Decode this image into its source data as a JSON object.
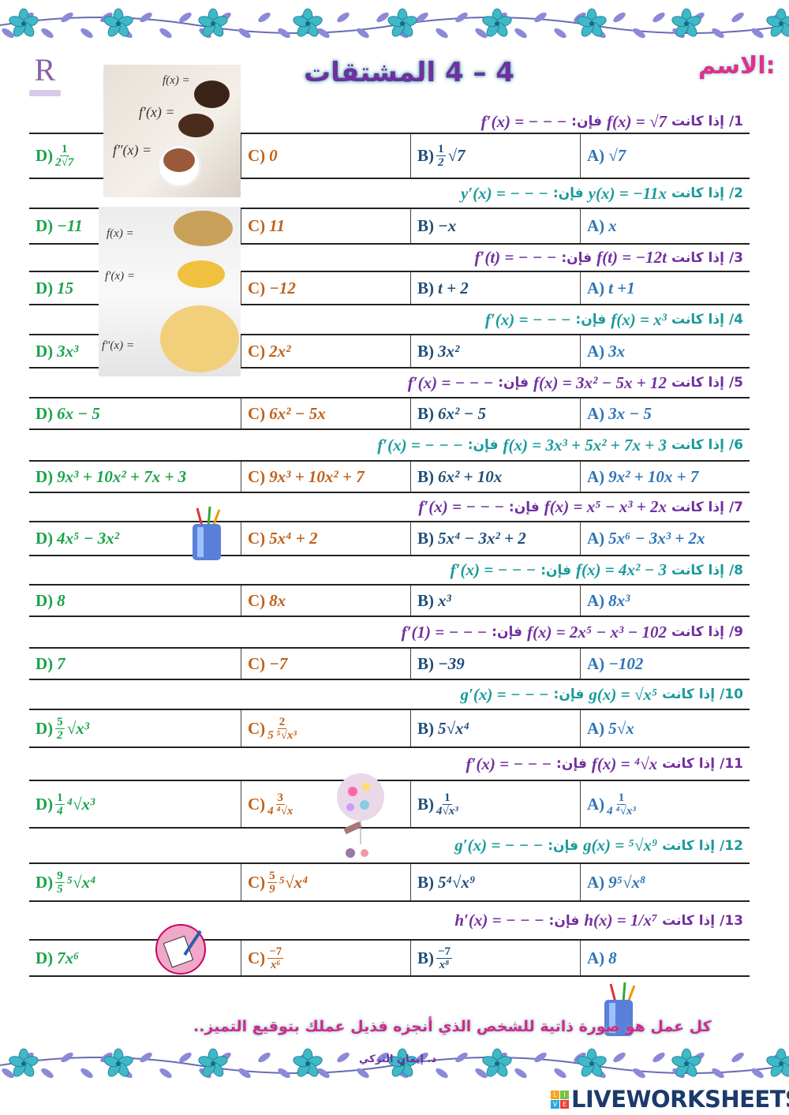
{
  "header": {
    "title": "4 – 4  المشتقات",
    "name_label": "الاسم:",
    "logo_letter": "R"
  },
  "images": {
    "photo1_labels": [
      "f(x) =",
      "f′(x) =",
      "f″(x) ="
    ],
    "photo2_labels": [
      "f(x)  =",
      "f′(x)  =",
      "f″(x)  ="
    ]
  },
  "colors": {
    "question_odd": "#7030a0",
    "question_even": "#1a9a9a",
    "D": "#1aa34a",
    "C": "#c0601a",
    "B": "#1f4e79",
    "A": "#2e75b6"
  },
  "common": {
    "if": "إذا كانت",
    "then": "فإن:"
  },
  "questions": [
    {
      "num": "1/",
      "expr": "f(x) = √7",
      "result": "f′(x) = − − −",
      "answers": {
        "D": {
          "label": "D)",
          "num": "1",
          "den": "2√7"
        },
        "C": {
          "label": "C)",
          "text": "0"
        },
        "B": {
          "label": "B)",
          "num": "1",
          "den": "2",
          "post": "√7"
        },
        "A": {
          "label": "A)",
          "text": "√7"
        }
      }
    },
    {
      "num": "2/",
      "expr": "y(x) = −11x",
      "result": "y′(x) = − − −",
      "answers": {
        "D": {
          "label": "D)",
          "text": "−11"
        },
        "C": {
          "label": "C)",
          "text": "11"
        },
        "B": {
          "label": "B)",
          "text": "−x"
        },
        "A": {
          "label": "A)",
          "text": "x"
        }
      }
    },
    {
      "num": "3/",
      "expr": "f(t) = −12t",
      "result": "f′(t) = − − −",
      "answers": {
        "D": {
          "label": "D)",
          "text": "15"
        },
        "C": {
          "label": "C)",
          "text": "−12"
        },
        "B": {
          "label": "B)",
          "text": "t + 2"
        },
        "A": {
          "label": "A)",
          "text": "t +1"
        }
      }
    },
    {
      "num": "4/",
      "expr": "f(x) = x³",
      "result": "f′(x) = − − −",
      "answers": {
        "D": {
          "label": "D)",
          "text": "3x³"
        },
        "C": {
          "label": "C)",
          "text": "2x²"
        },
        "B": {
          "label": "B)",
          "text": "3x²"
        },
        "A": {
          "label": "A)",
          "text": "3x"
        }
      }
    },
    {
      "num": "5/",
      "expr": "f(x) = 3x² − 5x + 12",
      "result": "f′(x) = − − −",
      "answers": {
        "D": {
          "label": "D)",
          "text": "6x − 5"
        },
        "C": {
          "label": "C)",
          "text": "6x² − 5x"
        },
        "B": {
          "label": "B)",
          "text": "6x² − 5"
        },
        "A": {
          "label": "A)",
          "text": "3x − 5"
        }
      }
    },
    {
      "num": "6/",
      "expr": "f(x) = 3x³ + 5x² + 7x + 3",
      "result": "f′(x) = − − −",
      "answers": {
        "D": {
          "label": "D)",
          "text": "9x³ + 10x² + 7x + 3"
        },
        "C": {
          "label": "C)",
          "text": "9x³ + 10x² + 7"
        },
        "B": {
          "label": "B)",
          "text": "6x² + 10x"
        },
        "A": {
          "label": "A)",
          "text": "9x² + 10x + 7"
        }
      }
    },
    {
      "num": "7/",
      "expr": "f(x) = x⁵ − x³ + 2x",
      "result": "f′(x) = − − −",
      "answers": {
        "D": {
          "label": "D)",
          "text": "4x⁵ − 3x²"
        },
        "C": {
          "label": "C)",
          "text": "5x⁴ + 2"
        },
        "B": {
          "label": "B)",
          "text": "5x⁴ − 3x² + 2"
        },
        "A": {
          "label": "A)",
          "text": "5x⁶ − 3x³ + 2x"
        }
      }
    },
    {
      "num": "8/",
      "expr": "f(x) = 4x² − 3",
      "result": "f′(x) = − − −",
      "answers": {
        "D": {
          "label": "D)",
          "text": "8"
        },
        "C": {
          "label": "C)",
          "text": "8x"
        },
        "B": {
          "label": "B)",
          "text": "x³"
        },
        "A": {
          "label": "A)",
          "text": "8x³"
        }
      }
    },
    {
      "num": "9/",
      "expr": "f(x) = 2x⁵ − x³ − 102",
      "result": "f′(1) = − − −",
      "answers": {
        "D": {
          "label": "D)",
          "text": "7"
        },
        "C": {
          "label": "C)",
          "text": "−7"
        },
        "B": {
          "label": "B)",
          "text": "−39"
        },
        "A": {
          "label": "A)",
          "text": "−102"
        }
      }
    },
    {
      "num": "10/",
      "expr": "g(x) = √x⁵",
      "result": "g′(x) = − − −",
      "answers": {
        "D": {
          "label": "D)",
          "num": "5",
          "den": "2",
          "post": "√x³"
        },
        "C": {
          "label": "C)",
          "num": "2",
          "den": "5 ⁵√x³"
        },
        "B": {
          "label": "B)",
          "text": "5√x⁴"
        },
        "A": {
          "label": "A)",
          "text": "5√x"
        }
      }
    },
    {
      "num": "11/",
      "expr": "f(x) = ⁴√x",
      "result": "f′(x) = − − −",
      "answers": {
        "D": {
          "label": "D)",
          "num": "1",
          "den": "4",
          "post": "⁴√x³"
        },
        "C": {
          "label": "C)",
          "num": "3",
          "den": "4 ⁴√x"
        },
        "B": {
          "label": "B)",
          "num": "1",
          "den": "4√x³"
        },
        "A": {
          "label": "A)",
          "num": "1",
          "den": "4 ⁴√x³"
        }
      }
    },
    {
      "num": "12/",
      "expr": "g(x) = ⁵√x⁹",
      "result": "g′(x) = − − −",
      "answers": {
        "D": {
          "label": "D)",
          "num": "9",
          "den": "5",
          "post": "⁵√x⁴"
        },
        "C": {
          "label": "C)",
          "num": "5",
          "den": "9",
          "post": "⁵√x⁴"
        },
        "B": {
          "label": "B)",
          "text": "5⁴√x⁹"
        },
        "A": {
          "label": "A)",
          "text": "9⁵√x⁸"
        }
      }
    },
    {
      "num": "13/",
      "expr": "h(x) = 1/x⁷",
      "result": "h′(x) = − − −",
      "answers": {
        "D": {
          "label": "D)",
          "text": "7x⁶"
        },
        "C": {
          "label": "C)",
          "num": "−7",
          "den": "x⁶"
        },
        "B": {
          "label": "B)",
          "num": "−7",
          "den": "x⁸"
        },
        "A": {
          "label": "A)",
          "text": "8"
        }
      }
    }
  ],
  "footer": {
    "quote": "كل عمل هو صورة ذاتية للشخص الذي أنجزه فذيل عملك بتوقيع التميز..",
    "author": "د. إيمان التركي",
    "brand": "LIVEWORKSHEETS",
    "brand_logo_letters": [
      "L",
      "I",
      "V",
      "E"
    ]
  }
}
